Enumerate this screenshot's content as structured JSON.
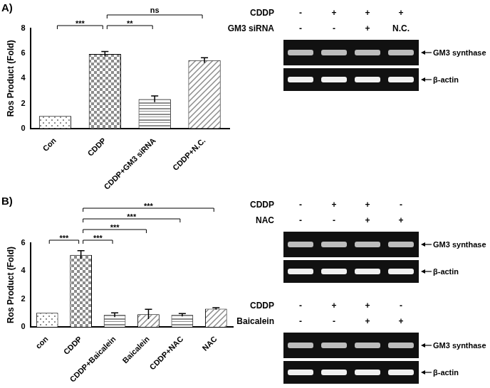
{
  "chart_data": [
    {
      "type": "bar",
      "title": "A)",
      "y_label": "Ros Product (Fold)",
      "categories": [
        "Con",
        "CDDP",
        "CDDP+GM3 siRNA",
        "CDDP+N.C."
      ],
      "values": [
        1.0,
        5.95,
        2.35,
        5.45
      ],
      "errors": [
        0,
        0.2,
        0.25,
        0.2
      ],
      "color": "#8c8c8c",
      "ylim": [
        0,
        8
      ],
      "yticks": [
        0,
        2,
        4,
        6,
        8
      ],
      "grid": false,
      "annotations": [
        {
          "from": "Con",
          "to": "CDDP",
          "text": "***"
        },
        {
          "from": "CDDP",
          "to": "CDDP+GM3 siRNA",
          "text": "**"
        },
        {
          "from": "CDDP",
          "to": "CDDP+N.C.",
          "text": "ns"
        }
      ]
    },
    {
      "type": "bar",
      "title": "B)",
      "y_label": "Ros Product (Fold)",
      "categories": [
        "con",
        "CDDP",
        "CDDP+Baicalein",
        "Baicalein",
        "CDDP+NAC",
        "NAC"
      ],
      "values": [
        1.0,
        5.15,
        0.85,
        0.9,
        0.85,
        1.3
      ],
      "errors": [
        0,
        0.3,
        0.15,
        0.35,
        0.1,
        0.07
      ],
      "color": "#8c8c8c",
      "ylim": [
        0,
        6
      ],
      "yticks": [
        0,
        2,
        4,
        6
      ],
      "grid": false,
      "annotations": [
        {
          "from": "con",
          "to": "CDDP",
          "text": "***"
        },
        {
          "from": "CDDP",
          "to": "CDDP+Baicalein",
          "text": "***"
        },
        {
          "from": "CDDP",
          "to": "Baicalein",
          "text": "***"
        },
        {
          "from": "CDDP",
          "to": "CDDP+NAC",
          "text": "***"
        },
        {
          "from": "CDDP",
          "to": "NAC",
          "text": "***"
        }
      ]
    }
  ],
  "gels": [
    {
      "rows": [
        {
          "label": "CDDP",
          "values": [
            "-",
            "+",
            "+",
            "+"
          ]
        },
        {
          "label": "GM3 siRNA",
          "values": [
            "-",
            "-",
            "+",
            "N.C."
          ]
        }
      ],
      "bands": [
        "GM3 synthase",
        "β-actin"
      ]
    },
    {
      "rows": [
        {
          "label": "CDDP",
          "values": [
            "-",
            "+",
            "+",
            "-"
          ]
        },
        {
          "label": "NAC",
          "values": [
            "-",
            "-",
            "+",
            "+"
          ]
        }
      ],
      "bands": [
        "GM3 synthase",
        "β-actin"
      ]
    },
    {
      "rows": [
        {
          "label": "CDDP",
          "values": [
            "-",
            "+",
            "+",
            "-"
          ]
        },
        {
          "label": "Baicalein",
          "values": [
            "-",
            "-",
            "+",
            "+"
          ]
        }
      ],
      "bands": [
        "GM3 synthase",
        "β-actin"
      ]
    }
  ]
}
